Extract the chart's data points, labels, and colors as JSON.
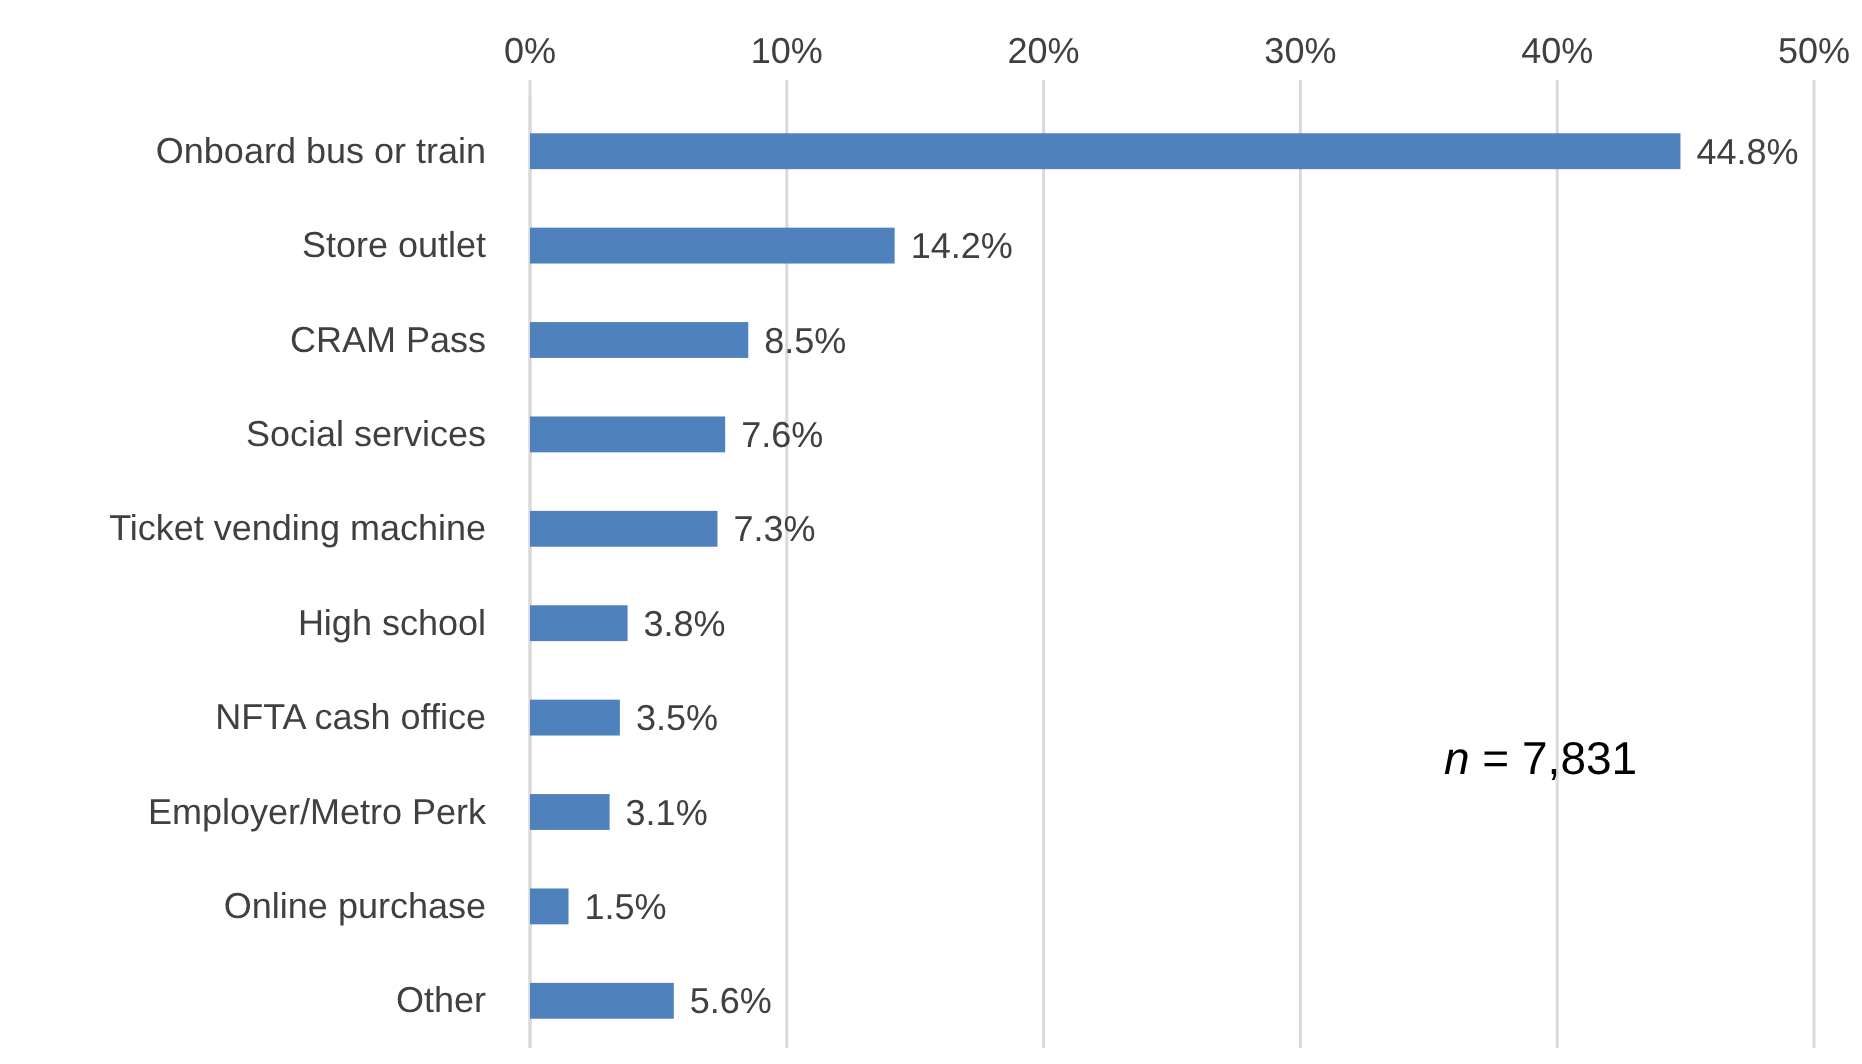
{
  "chart_data": {
    "type": "bar",
    "orientation": "horizontal",
    "categories": [
      "Onboard bus or train",
      "Store outlet",
      "CRAM Pass",
      "Social services",
      "Ticket vending machine",
      "High school",
      "NFTA cash office",
      "Employer/Metro Perk",
      "Online purchase",
      "Other"
    ],
    "values": [
      44.8,
      14.2,
      8.5,
      7.6,
      7.3,
      3.8,
      3.5,
      3.1,
      1.5,
      5.6
    ],
    "value_labels": [
      "44.8%",
      "14.2%",
      "8.5%",
      "7.6%",
      "7.3%",
      "3.8%",
      "3.5%",
      "3.1%",
      "1.5%",
      "5.6%"
    ],
    "color": "#4f81bd",
    "xlim": [
      0,
      50
    ],
    "xticks": [
      {
        "value": 0,
        "label": "0%"
      },
      {
        "value": 10,
        "label": "10%"
      },
      {
        "value": 20,
        "label": "20%"
      },
      {
        "value": 30,
        "label": "30%"
      },
      {
        "value": 40,
        "label": "40%"
      },
      {
        "value": 50,
        "label": "50%"
      }
    ],
    "grid": "x",
    "annotations": [
      "n = 7,831"
    ]
  }
}
